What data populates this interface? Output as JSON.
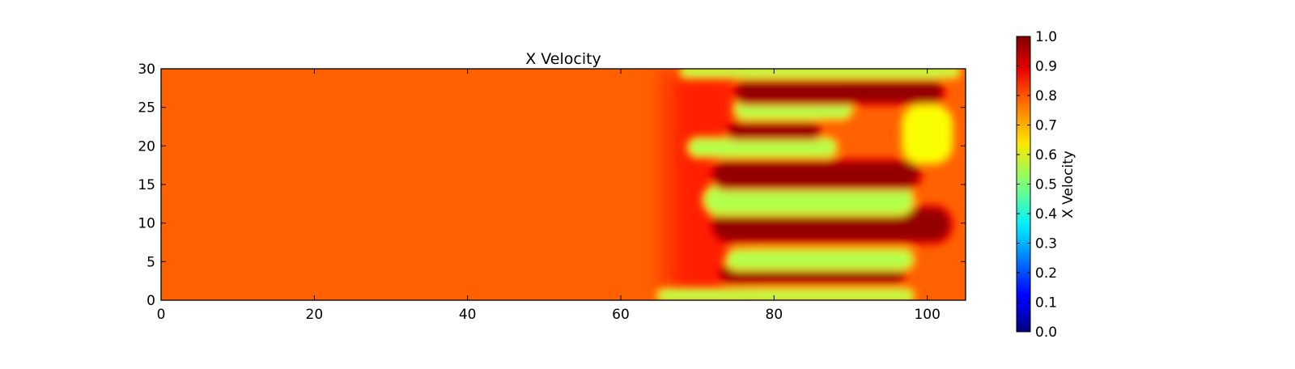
{
  "chart_data": {
    "type": "heatmap",
    "title": "X Velocity",
    "xlabel": "",
    "ylabel": "",
    "xlim": [
      0,
      105
    ],
    "ylim": [
      0,
      30
    ],
    "x_ticks": [
      "0",
      "20",
      "40",
      "60",
      "80",
      "100"
    ],
    "y_ticks": [
      "0",
      "5",
      "10",
      "15",
      "20",
      "25",
      "30"
    ],
    "grid": false,
    "colormap": "jet",
    "background_value": 0.78,
    "colorbar": {
      "label": "X Velocity",
      "range": [
        0.0,
        1.0
      ],
      "ticks": [
        "0.0",
        "0.1",
        "0.2",
        "0.3",
        "0.4",
        "0.5",
        "0.6",
        "0.7",
        "0.8",
        "0.9",
        "1.0"
      ],
      "placement": "right"
    },
    "features": [
      {
        "name": "slow-finger-1",
        "value": 0.55,
        "x_start": 65,
        "x_end": 98,
        "y": 0.6,
        "half_width": 0.6
      },
      {
        "name": "fast-finger-1",
        "value": 0.98,
        "x_start": 73,
        "x_end": 97,
        "y": 3.5,
        "half_width": 1.2
      },
      {
        "name": "slow-finger-2",
        "value": 0.55,
        "x_start": 74,
        "x_end": 98,
        "y": 5.3,
        "half_width": 1.1
      },
      {
        "name": "fast-finger-2",
        "value": 0.98,
        "x_start": 72,
        "x_end": 103,
        "y": 9.8,
        "half_width": 2.2
      },
      {
        "name": "slow-finger-3",
        "value": 0.55,
        "x_start": 71,
        "x_end": 98,
        "y": 13.0,
        "half_width": 1.7
      },
      {
        "name": "fast-finger-3",
        "value": 0.98,
        "x_start": 72,
        "x_end": 99,
        "y": 16.3,
        "half_width": 1.7
      },
      {
        "name": "slow-finger-4",
        "value": 0.55,
        "x_start": 69,
        "x_end": 88,
        "y": 19.8,
        "half_width": 1.0
      },
      {
        "name": "fast-finger-4",
        "value": 0.98,
        "x_start": 74,
        "x_end": 86,
        "y": 22.0,
        "half_width": 0.9
      },
      {
        "name": "slow-finger-5",
        "value": 0.55,
        "x_start": 75,
        "x_end": 90,
        "y": 24.8,
        "half_width": 1.1
      },
      {
        "name": "fast-finger-5",
        "value": 0.98,
        "x_start": 75,
        "x_end": 102,
        "y": 27.0,
        "half_width": 1.4
      },
      {
        "name": "slow-finger-6",
        "value": 0.55,
        "x_start": 68,
        "x_end": 104,
        "y": 29.6,
        "half_width": 0.5
      },
      {
        "name": "slow-zone-right",
        "value": 0.62,
        "x_start": 97,
        "x_end": 103,
        "y": 21.5,
        "half_width": 3.5
      }
    ]
  }
}
